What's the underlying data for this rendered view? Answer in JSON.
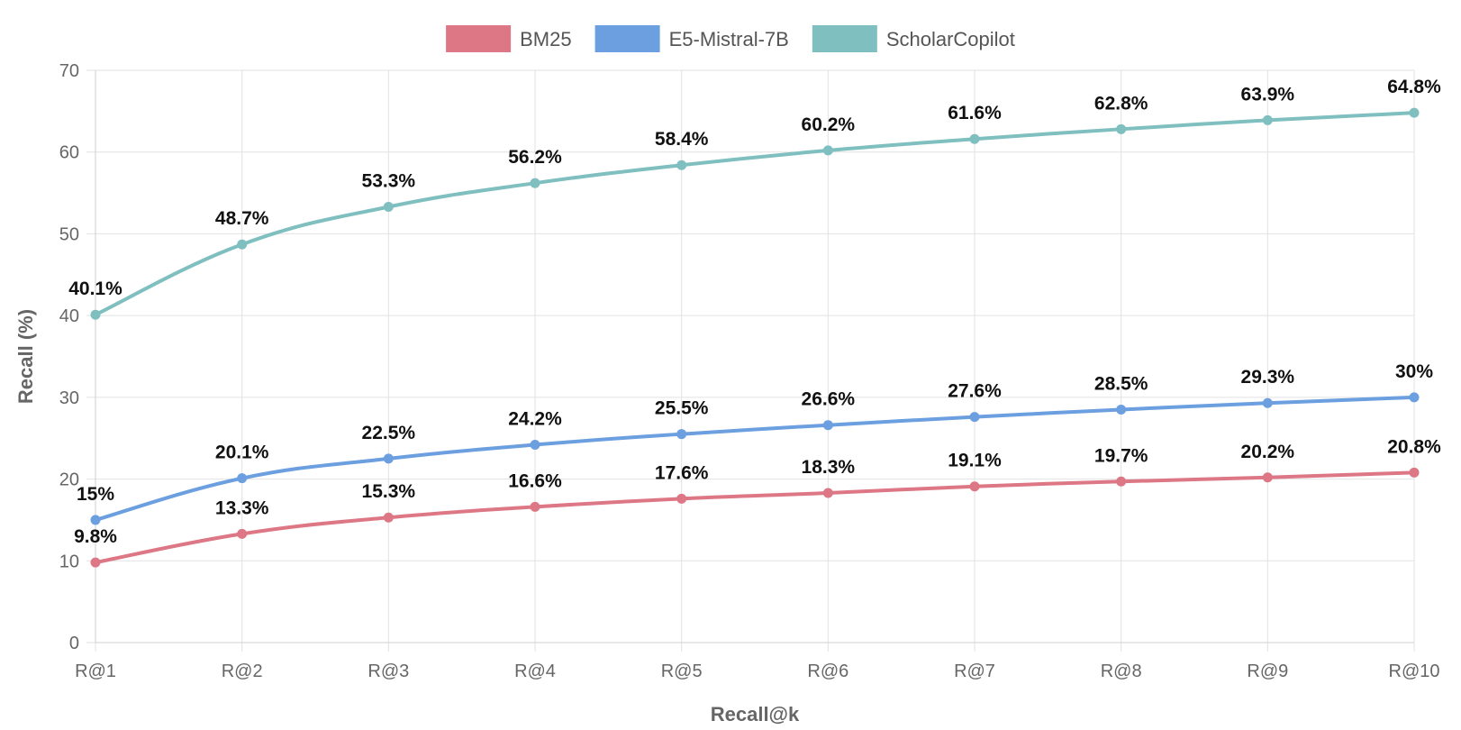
{
  "chart_data": {
    "type": "line",
    "title": "",
    "xlabel": "Recall@k",
    "ylabel": "Recall (%)",
    "ylim": [
      0,
      70
    ],
    "yticks": [
      0,
      10,
      20,
      30,
      40,
      50,
      60,
      70
    ],
    "grid": true,
    "legend_position": "top-center",
    "categories": [
      "R@1",
      "R@2",
      "R@3",
      "R@4",
      "R@5",
      "R@6",
      "R@7",
      "R@8",
      "R@9",
      "R@10"
    ],
    "series": [
      {
        "name": "BM25",
        "color": "#dd7785",
        "values": [
          9.8,
          13.3,
          15.3,
          16.6,
          17.6,
          18.3,
          19.1,
          19.7,
          20.2,
          20.8
        ],
        "labels": [
          "9.8%",
          "13.3%",
          "15.3%",
          "16.6%",
          "17.6%",
          "18.3%",
          "19.1%",
          "19.7%",
          "20.2%",
          "20.8%"
        ]
      },
      {
        "name": "E5-Mistral-7B",
        "color": "#6b9fdf",
        "values": [
          15,
          20.1,
          22.5,
          24.2,
          25.5,
          26.6,
          27.6,
          28.5,
          29.3,
          30
        ],
        "labels": [
          "15%",
          "20.1%",
          "22.5%",
          "24.2%",
          "25.5%",
          "26.6%",
          "27.6%",
          "28.5%",
          "29.3%",
          "30%"
        ]
      },
      {
        "name": "ScholarCopilot",
        "color": "#7fbfbf",
        "values": [
          40.1,
          48.7,
          53.3,
          56.2,
          58.4,
          60.2,
          61.6,
          62.8,
          63.9,
          64.8
        ],
        "labels": [
          "40.1%",
          "48.7%",
          "53.3%",
          "56.2%",
          "58.4%",
          "60.2%",
          "61.6%",
          "62.8%",
          "63.9%",
          "64.8%"
        ]
      }
    ]
  }
}
